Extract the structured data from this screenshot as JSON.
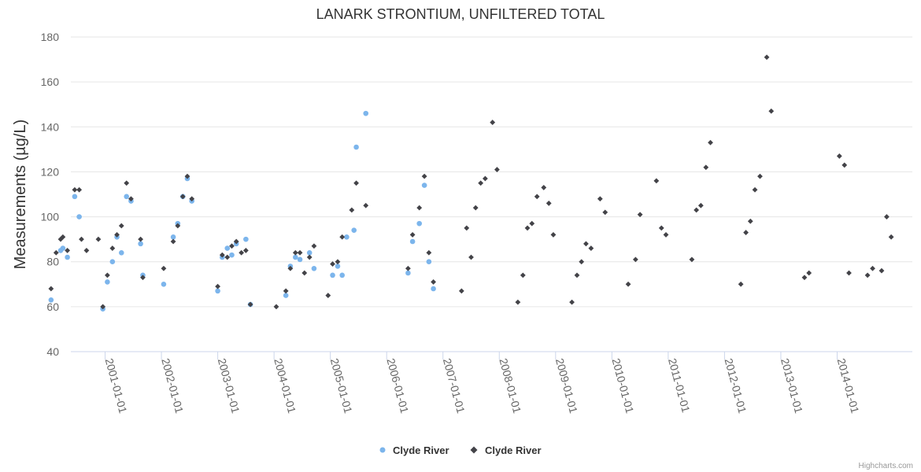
{
  "chart_data": {
    "type": "scatter",
    "title": "LANARK STRONTIUM, UNFILTERED TOTAL",
    "ylabel": "Measurements (µg/L)",
    "xlabel": "",
    "ylim": [
      40,
      180
    ],
    "yticks": [
      40,
      60,
      80,
      100,
      120,
      140,
      160,
      180
    ],
    "xlim": [
      2000.0,
      2015.0
    ],
    "xtick_labels": [
      "2001-01-01",
      "2002-01-01",
      "2003-01-01",
      "2004-01-01",
      "2005-01-01",
      "2006-01-01",
      "2007-01-01",
      "2008-01-01",
      "2009-01-01",
      "2010-01-01",
      "2011-01-01",
      "2012-01-01",
      "2013-01-01",
      "2014-01-01"
    ],
    "xtick_values": [
      2001,
      2002,
      2003,
      2004,
      2005,
      2006,
      2007,
      2008,
      2009,
      2010,
      2011,
      2012,
      2013,
      2014
    ],
    "series": [
      {
        "name": "Clyde River",
        "marker": "circle",
        "color": "#7cb5ec",
        "points": [
          [
            2000.04,
            63
          ],
          [
            2000.21,
            85
          ],
          [
            2000.25,
            86
          ],
          [
            2000.33,
            82
          ],
          [
            2000.46,
            109
          ],
          [
            2000.54,
            100
          ],
          [
            2000.96,
            59
          ],
          [
            2001.04,
            71
          ],
          [
            2001.13,
            80
          ],
          [
            2001.21,
            91
          ],
          [
            2001.29,
            84
          ],
          [
            2001.38,
            109
          ],
          [
            2001.46,
            107
          ],
          [
            2001.63,
            88
          ],
          [
            2001.67,
            74
          ],
          [
            2002.04,
            70
          ],
          [
            2002.21,
            91
          ],
          [
            2002.29,
            97
          ],
          [
            2002.38,
            109
          ],
          [
            2002.46,
            117
          ],
          [
            2002.54,
            107
          ],
          [
            2003.0,
            67
          ],
          [
            2003.08,
            82
          ],
          [
            2003.17,
            86
          ],
          [
            2003.25,
            83
          ],
          [
            2003.33,
            88
          ],
          [
            2003.5,
            90
          ],
          [
            2003.58,
            61
          ],
          [
            2004.21,
            65
          ],
          [
            2004.29,
            78
          ],
          [
            2004.38,
            82
          ],
          [
            2004.46,
            81
          ],
          [
            2004.63,
            84
          ],
          [
            2004.71,
            77
          ],
          [
            2005.04,
            74
          ],
          [
            2005.13,
            78
          ],
          [
            2005.21,
            74
          ],
          [
            2005.29,
            91
          ],
          [
            2005.42,
            94
          ],
          [
            2005.46,
            131
          ],
          [
            2005.63,
            146
          ],
          [
            2006.38,
            75
          ],
          [
            2006.46,
            89
          ],
          [
            2006.58,
            97
          ],
          [
            2006.67,
            114
          ],
          [
            2006.75,
            80
          ],
          [
            2006.83,
            68
          ]
        ]
      },
      {
        "name": "Clyde River",
        "marker": "diamond",
        "color": "#434348",
        "points": [
          [
            2000.04,
            68
          ],
          [
            2000.13,
            84
          ],
          [
            2000.21,
            90
          ],
          [
            2000.25,
            91
          ],
          [
            2000.33,
            85
          ],
          [
            2000.46,
            112
          ],
          [
            2000.54,
            112
          ],
          [
            2000.58,
            90
          ],
          [
            2000.67,
            85
          ],
          [
            2000.88,
            90
          ],
          [
            2000.96,
            60
          ],
          [
            2001.04,
            74
          ],
          [
            2001.13,
            86
          ],
          [
            2001.21,
            92
          ],
          [
            2001.29,
            96
          ],
          [
            2001.38,
            115
          ],
          [
            2001.46,
            108
          ],
          [
            2001.63,
            90
          ],
          [
            2001.67,
            73
          ],
          [
            2002.04,
            77
          ],
          [
            2002.21,
            89
          ],
          [
            2002.29,
            96
          ],
          [
            2002.38,
            109
          ],
          [
            2002.46,
            118
          ],
          [
            2002.54,
            108
          ],
          [
            2003.0,
            69
          ],
          [
            2003.08,
            83
          ],
          [
            2003.17,
            82
          ],
          [
            2003.25,
            87
          ],
          [
            2003.33,
            89
          ],
          [
            2003.42,
            84
          ],
          [
            2003.5,
            85
          ],
          [
            2003.58,
            61
          ],
          [
            2004.04,
            60
          ],
          [
            2004.21,
            67
          ],
          [
            2004.29,
            77
          ],
          [
            2004.38,
            84
          ],
          [
            2004.46,
            84
          ],
          [
            2004.54,
            75
          ],
          [
            2004.63,
            82
          ],
          [
            2004.71,
            87
          ],
          [
            2004.96,
            65
          ],
          [
            2005.04,
            79
          ],
          [
            2005.13,
            80
          ],
          [
            2005.21,
            91
          ],
          [
            2005.38,
            103
          ],
          [
            2005.46,
            115
          ],
          [
            2005.63,
            105
          ],
          [
            2006.38,
            77
          ],
          [
            2006.46,
            92
          ],
          [
            2006.58,
            104
          ],
          [
            2006.67,
            118
          ],
          [
            2006.75,
            84
          ],
          [
            2006.83,
            71
          ],
          [
            2007.33,
            67
          ],
          [
            2007.42,
            95
          ],
          [
            2007.5,
            82
          ],
          [
            2007.58,
            104
          ],
          [
            2007.67,
            115
          ],
          [
            2007.75,
            117
          ],
          [
            2007.88,
            142
          ],
          [
            2007.96,
            121
          ],
          [
            2008.33,
            62
          ],
          [
            2008.42,
            74
          ],
          [
            2008.5,
            95
          ],
          [
            2008.58,
            97
          ],
          [
            2008.67,
            109
          ],
          [
            2008.79,
            113
          ],
          [
            2008.88,
            106
          ],
          [
            2008.96,
            92
          ],
          [
            2009.29,
            62
          ],
          [
            2009.38,
            74
          ],
          [
            2009.46,
            80
          ],
          [
            2009.54,
            88
          ],
          [
            2009.63,
            86
          ],
          [
            2009.79,
            108
          ],
          [
            2009.88,
            102
          ],
          [
            2010.29,
            70
          ],
          [
            2010.42,
            81
          ],
          [
            2010.5,
            101
          ],
          [
            2010.79,
            116
          ],
          [
            2010.88,
            95
          ],
          [
            2010.96,
            92
          ],
          [
            2011.42,
            81
          ],
          [
            2011.5,
            103
          ],
          [
            2011.58,
            105
          ],
          [
            2011.67,
            122
          ],
          [
            2011.75,
            133
          ],
          [
            2012.29,
            70
          ],
          [
            2012.38,
            93
          ],
          [
            2012.46,
            98
          ],
          [
            2012.54,
            112
          ],
          [
            2012.63,
            118
          ],
          [
            2012.75,
            171
          ],
          [
            2012.83,
            147
          ],
          [
            2013.42,
            73
          ],
          [
            2013.5,
            75
          ],
          [
            2014.04,
            127
          ],
          [
            2014.13,
            123
          ],
          [
            2014.21,
            75
          ],
          [
            2014.54,
            74
          ],
          [
            2014.63,
            77
          ],
          [
            2014.79,
            76
          ],
          [
            2014.88,
            100
          ],
          [
            2014.96,
            91
          ]
        ]
      }
    ],
    "legend": [
      "Clyde River",
      "Clyde River"
    ],
    "legend_position": "bottom-center",
    "credits": "Highcharts.com"
  }
}
